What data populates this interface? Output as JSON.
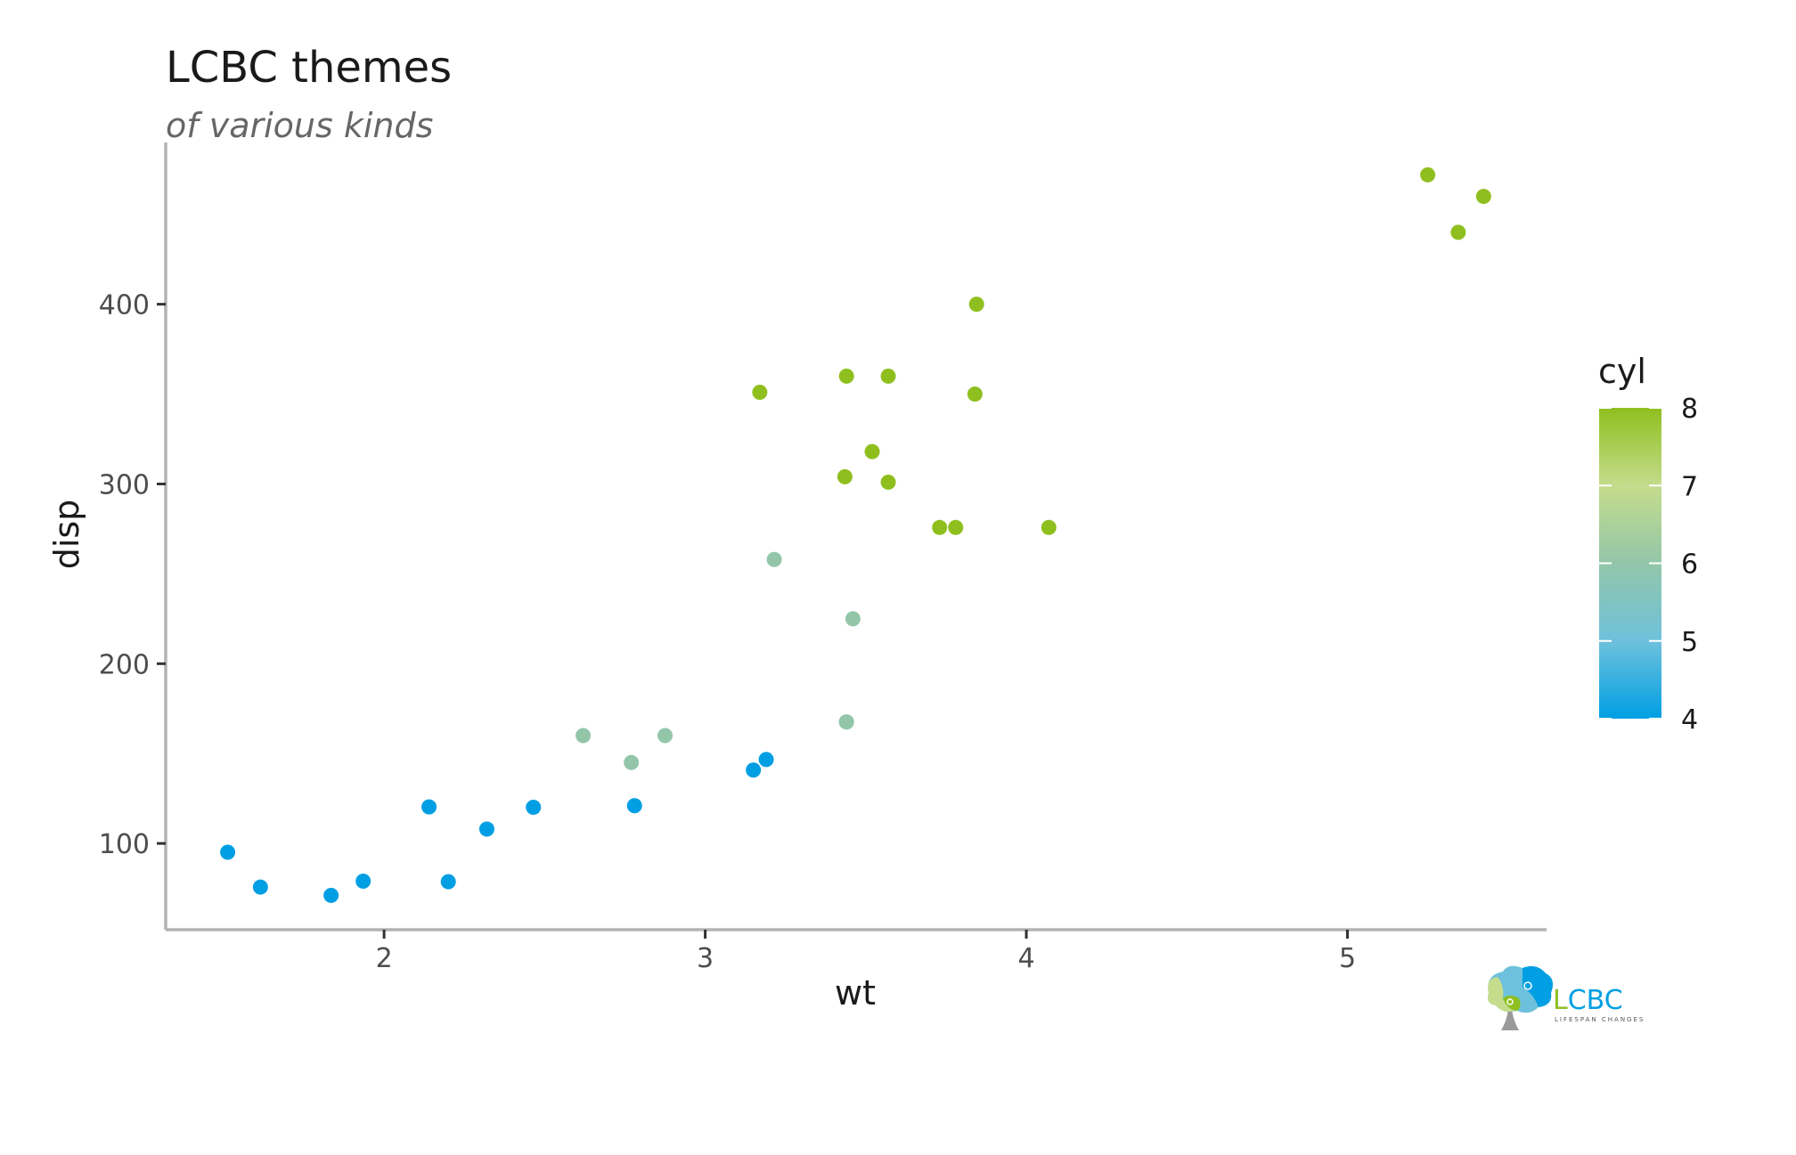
{
  "chart_data": {
    "type": "scatter",
    "title": "LCBC themes",
    "subtitle": "of various kinds",
    "xlabel": "wt",
    "ylabel": "disp",
    "xlim": [
      1.32,
      5.62
    ],
    "ylim": [
      52,
      490
    ],
    "xticks": [
      2,
      3,
      4,
      5
    ],
    "yticks": [
      100,
      200,
      300,
      400
    ],
    "grid": false,
    "legend": {
      "title": "cyl",
      "type": "colorbar",
      "position": "right",
      "range": [
        4,
        8
      ],
      "ticks": [
        4,
        5,
        6,
        7,
        8
      ],
      "gradient": [
        "#009fe3",
        "#6ec1dc",
        "#93c6a9",
        "#c4dc8c",
        "#8fbf1f"
      ]
    },
    "points": [
      {
        "x": 2.62,
        "y": 160,
        "cyl": 6
      },
      {
        "x": 2.875,
        "y": 160,
        "cyl": 6
      },
      {
        "x": 2.32,
        "y": 108,
        "cyl": 4
      },
      {
        "x": 3.215,
        "y": 258,
        "cyl": 6
      },
      {
        "x": 3.44,
        "y": 360,
        "cyl": 8
      },
      {
        "x": 3.46,
        "y": 225,
        "cyl": 6
      },
      {
        "x": 3.57,
        "y": 360,
        "cyl": 8
      },
      {
        "x": 3.19,
        "y": 146.7,
        "cyl": 4
      },
      {
        "x": 3.15,
        "y": 140.8,
        "cyl": 4
      },
      {
        "x": 3.44,
        "y": 167.6,
        "cyl": 6
      },
      {
        "x": 3.44,
        "y": 167.6,
        "cyl": 6
      },
      {
        "x": 4.07,
        "y": 275.8,
        "cyl": 8
      },
      {
        "x": 3.73,
        "y": 275.8,
        "cyl": 8
      },
      {
        "x": 3.78,
        "y": 275.8,
        "cyl": 8
      },
      {
        "x": 5.25,
        "y": 472,
        "cyl": 8
      },
      {
        "x": 5.424,
        "y": 460,
        "cyl": 8
      },
      {
        "x": 5.345,
        "y": 440,
        "cyl": 8
      },
      {
        "x": 2.2,
        "y": 78.7,
        "cyl": 4
      },
      {
        "x": 1.615,
        "y": 75.7,
        "cyl": 4
      },
      {
        "x": 1.835,
        "y": 71.1,
        "cyl": 4
      },
      {
        "x": 2.465,
        "y": 120.1,
        "cyl": 4
      },
      {
        "x": 3.52,
        "y": 318,
        "cyl": 8
      },
      {
        "x": 3.435,
        "y": 304,
        "cyl": 8
      },
      {
        "x": 3.84,
        "y": 350,
        "cyl": 8
      },
      {
        "x": 3.845,
        "y": 400,
        "cyl": 8
      },
      {
        "x": 1.935,
        "y": 79,
        "cyl": 4
      },
      {
        "x": 2.14,
        "y": 120.3,
        "cyl": 4
      },
      {
        "x": 1.513,
        "y": 95.1,
        "cyl": 4
      },
      {
        "x": 3.17,
        "y": 351,
        "cyl": 8
      },
      {
        "x": 2.77,
        "y": 145,
        "cyl": 6
      },
      {
        "x": 3.57,
        "y": 301,
        "cyl": 8
      },
      {
        "x": 2.78,
        "y": 121,
        "cyl": 4
      }
    ]
  },
  "logo": {
    "text_l": "L",
    "text_cbc": "CBC",
    "tagline": "LIFESPAN CHANGES",
    "color_green": "#8fbf1f",
    "color_blue": "#009fe3"
  }
}
